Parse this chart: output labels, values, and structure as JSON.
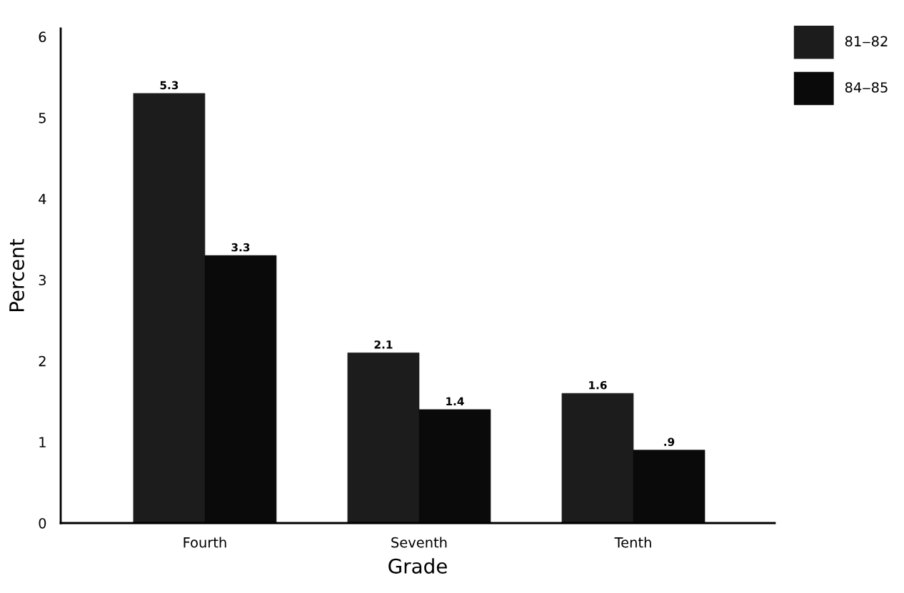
{
  "chart_data": {
    "type": "bar",
    "xlabel": "Grade",
    "ylabel": "Percent",
    "categories": [
      "Fourth",
      "Seventh",
      "Tenth"
    ],
    "series": [
      {
        "name": "81‒82",
        "color": "#1c1c1c",
        "values": [
          5.3,
          2.1,
          1.6
        ],
        "value_labels": [
          "5.3",
          "2.1",
          "1.6"
        ]
      },
      {
        "name": "84‒85",
        "color": "#0a0a0a",
        "values": [
          3.3,
          1.4,
          0.9
        ],
        "value_labels": [
          "3.3",
          "1.4",
          ".9"
        ]
      }
    ],
    "ylim": [
      0,
      6.1
    ],
    "yticks": [
      0,
      1,
      2,
      3,
      4,
      5,
      6
    ],
    "grid": false,
    "legend": "top right"
  }
}
